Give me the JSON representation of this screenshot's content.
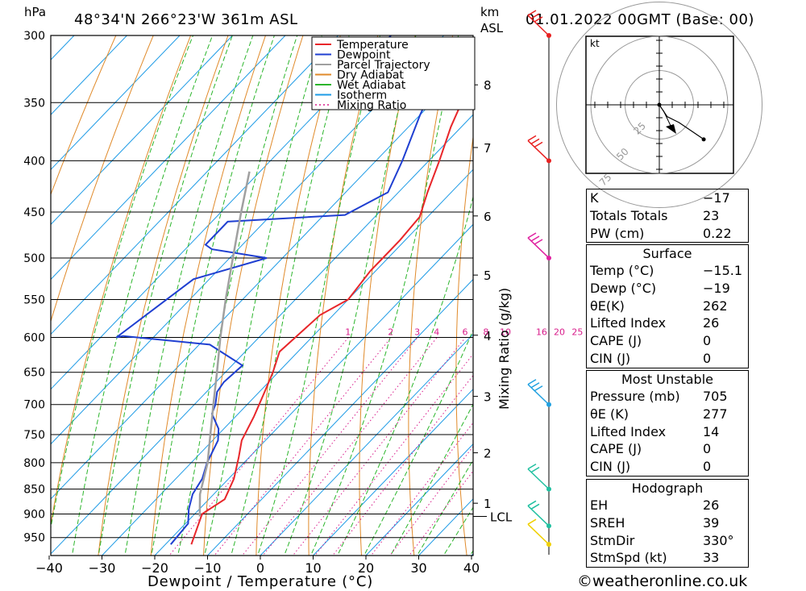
{
  "header": {
    "location": "48°34'N  266°23'W  361m  ASL",
    "datetime": "01.01.2022  00GMT  (Base: 00)",
    "hpa_label": "hPa",
    "km_label": "km",
    "asl_label": "ASL"
  },
  "legend": [
    {
      "label": "Temperature",
      "color": "#e8262a",
      "style": "solid"
    },
    {
      "label": "Dewpoint",
      "color": "#1f3fd1",
      "style": "solid"
    },
    {
      "label": "Parcel Trajectory",
      "color": "#a0a0a0",
      "style": "solid"
    },
    {
      "label": "Dry Adiabat",
      "color": "#e08a2a",
      "style": "solid"
    },
    {
      "label": "Wet Adiabat",
      "color": "#2bb52b",
      "style": "solid"
    },
    {
      "label": "Isotherm",
      "color": "#1e9be6",
      "style": "solid"
    },
    {
      "label": "Mixing Ratio",
      "color": "#d81b8a",
      "style": "dotted"
    }
  ],
  "chart_data": {
    "type": "line",
    "chart_kind": "skew-T log-P sounding",
    "xlabel": "Dewpoint / Temperature (°C)",
    "ylabel_right": "Mixing Ratio (g/kg)",
    "x_ticks": [
      -40,
      -30,
      -20,
      -10,
      0,
      10,
      20,
      30,
      40
    ],
    "x_tick_labels": [
      "−40",
      "−30",
      "−20",
      "−10",
      "0",
      "10",
      "20",
      "30",
      "40"
    ],
    "pressure_ticks": [
      300,
      350,
      400,
      450,
      500,
      550,
      600,
      650,
      700,
      750,
      800,
      850,
      900,
      950
    ],
    "ylim_hpa": [
      990,
      300
    ],
    "km_ticks": [
      {
        "km": "1",
        "p": 878
      },
      {
        "km": "2",
        "p": 782
      },
      {
        "km": "3",
        "p": 687
      },
      {
        "km": "4",
        "p": 597
      },
      {
        "km": "5",
        "p": 520
      },
      {
        "km": "6",
        "p": 454
      },
      {
        "km": "7",
        "p": 388
      },
      {
        "km": "8",
        "p": 336
      }
    ],
    "lcl": {
      "label": "LCL",
      "p": 905
    },
    "mixing_ratio_labels": [
      "1",
      "2",
      "3",
      "4",
      "6",
      "8",
      "10",
      "16",
      "20",
      "25"
    ],
    "series": [
      {
        "name": "Temperature",
        "color": "#e8262a",
        "points": [
          [
            -15.1,
            965
          ],
          [
            -18.6,
            900
          ],
          [
            -17.0,
            870
          ],
          [
            -19,
            830
          ],
          [
            -22,
            790
          ],
          [
            -24.5,
            760
          ],
          [
            -26.5,
            720
          ],
          [
            -29,
            680
          ],
          [
            -31,
            650
          ],
          [
            -33.5,
            620
          ],
          [
            -33,
            595
          ],
          [
            -32.5,
            570
          ],
          [
            -30,
            550
          ],
          [
            -31,
            515
          ],
          [
            -31,
            500
          ],
          [
            -31,
            480
          ],
          [
            -31.5,
            455
          ],
          [
            -34.5,
            430
          ],
          [
            -38,
            400
          ],
          [
            -42,
            370
          ],
          [
            -45,
            345
          ],
          [
            -47,
            328
          ],
          [
            -46,
            320
          ],
          [
            -45,
            310
          ],
          [
            -44,
            300
          ]
        ]
      },
      {
        "name": "Dewpoint",
        "color": "#1f3fd1",
        "points": [
          [
            -19,
            965
          ],
          [
            -19.5,
            920
          ],
          [
            -22,
            890
          ],
          [
            -24,
            860
          ],
          [
            -25,
            830
          ],
          [
            -27,
            800
          ],
          [
            -29,
            760
          ],
          [
            -31,
            740
          ],
          [
            -35,
            715
          ],
          [
            -36,
            700
          ],
          [
            -38,
            680
          ],
          [
            -38.5,
            665
          ],
          [
            -38,
            640
          ],
          [
            -48,
            610
          ],
          [
            -66,
            598
          ],
          [
            -67,
            600
          ],
          [
            -63,
            525
          ],
          [
            -53,
            500
          ],
          [
            -65,
            490
          ],
          [
            -67,
            485
          ],
          [
            -67,
            460
          ],
          [
            -46,
            453
          ],
          [
            -42,
            430
          ],
          [
            -45,
            400
          ],
          [
            -50,
            360
          ],
          [
            -53,
            335
          ],
          [
            -70,
            310
          ],
          [
            -70,
            300
          ]
        ]
      },
      {
        "name": "Parcel Trajectory",
        "color": "#a0a0a0",
        "points": [
          [
            -18.6,
            905
          ],
          [
            -22.6,
            860
          ],
          [
            -26.9,
            800
          ],
          [
            -31.5,
            750
          ],
          [
            -36.4,
            700
          ],
          [
            -41.6,
            650
          ],
          [
            -47.3,
            600
          ],
          [
            -53.2,
            550
          ],
          [
            -59.4,
            500
          ],
          [
            -66.2,
            450
          ],
          [
            -72,
            410
          ]
        ]
      }
    ],
    "wind_barbs": [
      {
        "p": 965,
        "color": "#f0d000",
        "speed_kt": 10
      },
      {
        "p": 925,
        "color": "#20c0a0",
        "speed_kt": 15
      },
      {
        "p": 850,
        "color": "#20c0a0",
        "speed_kt": 15
      },
      {
        "p": 700,
        "color": "#20a0e0",
        "speed_kt": 25
      },
      {
        "p": 500,
        "color": "#e020a0",
        "speed_kt": 40
      },
      {
        "p": 400,
        "color": "#e82020",
        "speed_kt": 55
      },
      {
        "p": 300,
        "color": "#e82020",
        "speed_kt": 60
      }
    ]
  },
  "hodograph": {
    "unit_label": "kt",
    "ring_labels": [
      "25",
      "50",
      "75"
    ],
    "points_kt": [
      [
        0,
        0
      ],
      [
        8,
        -12
      ],
      [
        20,
        -18
      ],
      [
        45,
        -35
      ]
    ]
  },
  "indices": {
    "rows": [
      {
        "label": "K",
        "value": "−17"
      },
      {
        "label": "Totals Totals",
        "value": "23"
      },
      {
        "label": "PW (cm)",
        "value": "0.22"
      }
    ]
  },
  "surface": {
    "title": "Surface",
    "rows": [
      {
        "label": "Temp (°C)",
        "value": "−15.1"
      },
      {
        "label": "Dewp (°C)",
        "value": "−19"
      },
      {
        "label": "θE(K)",
        "value": "262"
      },
      {
        "label": "Lifted Index",
        "value": "26"
      },
      {
        "label": "CAPE (J)",
        "value": "0"
      },
      {
        "label": "CIN (J)",
        "value": "0"
      }
    ]
  },
  "most_unstable": {
    "title": "Most Unstable",
    "rows": [
      {
        "label": "Pressure (mb)",
        "value": "705"
      },
      {
        "label": "θE (K)",
        "value": "277"
      },
      {
        "label": "Lifted Index",
        "value": "14"
      },
      {
        "label": "CAPE (J)",
        "value": "0"
      },
      {
        "label": "CIN (J)",
        "value": "0"
      }
    ]
  },
  "hodograph_table": {
    "title": "Hodograph",
    "rows": [
      {
        "label": "EH",
        "value": "26"
      },
      {
        "label": "SREH",
        "value": "39"
      },
      {
        "label": "StmDir",
        "value": "330°"
      },
      {
        "label": "StmSpd (kt)",
        "value": "33"
      }
    ]
  },
  "footer": {
    "copyright": "©weatheronline.co.uk"
  }
}
